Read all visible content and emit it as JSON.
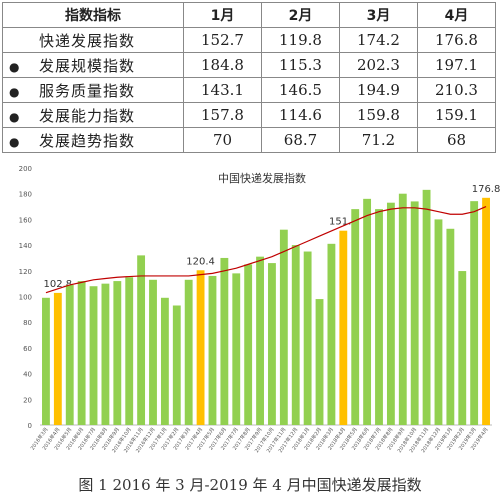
{
  "table": {
    "header": [
      "指数指标",
      "1月",
      "2月",
      "3月",
      "4月"
    ],
    "rows": [
      {
        "name": "快递发展指数",
        "values": [
          152.7,
          119.8,
          174.2,
          176.8
        ]
      },
      {
        "bullet": "●",
        "name": "发展规模指数",
        "values": [
          184.8,
          115.3,
          202.3,
          197.1
        ]
      },
      {
        "bullet": "●",
        "name": "服务质量指数",
        "values": [
          143.1,
          146.5,
          194.9,
          210.3
        ]
      },
      {
        "bullet": "●",
        "name": "发展能力指数",
        "values": [
          157.8,
          114.6,
          159.8,
          159.1
        ]
      },
      {
        "bullet": "●",
        "name": "发展趋势指数",
        "values": [
          70,
          68.7,
          71.2,
          68
        ]
      }
    ]
  },
  "chart_data": {
    "type": "bar",
    "title": "中国快递发展指数",
    "categories": [
      "2016年3月",
      "2016年4月",
      "2016年5月",
      "2016年6月",
      "2016年7月",
      "2016年8月",
      "2016年9月",
      "2016年10月",
      "2016年11月",
      "2016年12月",
      "2017年1月",
      "2017年2月",
      "2017年3月",
      "2017年4月",
      "2017年5月",
      "2017年6月",
      "2017年7月",
      "2017年8月",
      "2017年9月",
      "2017年10月",
      "2017年11月",
      "2017年12月",
      "2018年1月",
      "2018年2月",
      "2018年3月",
      "2018年4月",
      "2018年5月",
      "2018年6月",
      "2018年7月",
      "2018年8月",
      "2018年9月",
      "2018年10月",
      "2018年11月",
      "2018年12月",
      "2019年1月",
      "2019年2月",
      "2019年3月",
      "2019年4月"
    ],
    "series": [
      {
        "color": "#92d050",
        "highlight_color": "#ffc000",
        "highlight": [
          1,
          13,
          25,
          37
        ],
        "values": [
          99,
          102.8,
          109,
          112,
          108,
          110,
          112,
          115,
          132,
          113,
          99,
          93,
          113,
          120.4,
          116,
          130,
          118,
          125,
          131,
          126,
          152,
          140,
          135,
          98,
          141,
          151.2,
          168,
          176,
          168,
          173,
          180,
          174,
          183,
          160,
          152.7,
          119.8,
          174.2,
          176.8
        ]
      },
      {
        "type": "line",
        "color": "#c00000",
        "values": [
          103,
          106,
          109,
          111,
          113,
          114,
          115,
          115.5,
          116,
          116,
          116,
          116,
          116,
          117,
          118,
          120,
          122,
          125,
          128,
          131,
          135,
          139,
          143,
          147,
          151,
          155,
          159,
          163,
          166,
          168,
          169,
          169,
          168,
          166,
          164,
          164,
          166,
          170
        ]
      }
    ],
    "ylim": [
      0,
      200
    ],
    "yticks": [
      0,
      20,
      40,
      60,
      80,
      100,
      120,
      140,
      160,
      180,
      200
    ]
  },
  "caption": "图 1 2016 年 3 月-2019 年 4 月中国快递发展指数"
}
